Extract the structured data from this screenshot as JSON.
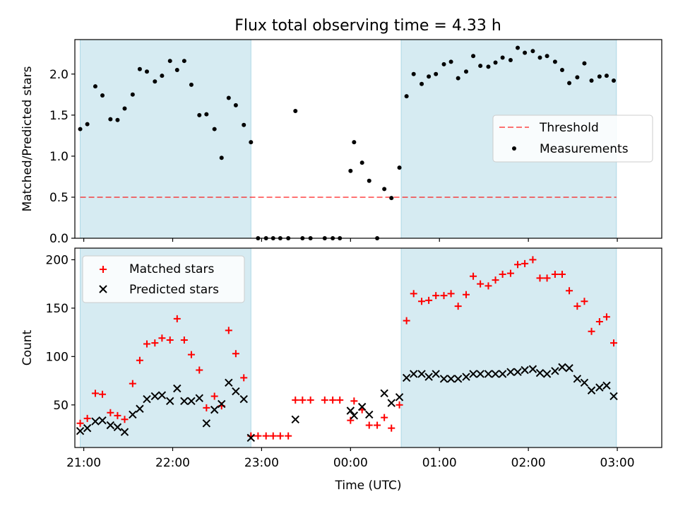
{
  "title": "Flux total observing time = 4.33 h",
  "colors": {
    "shade": "#add8e6",
    "threshold": "#ff0000",
    "measurement": "#000000",
    "matched": "#ff0000",
    "predicted": "#000000"
  },
  "chart_data": [
    {
      "type": "scatter",
      "name": "ratio",
      "ylabel": "Matched/Predicted stars",
      "xlim": [
        -0.1,
        6.5
      ],
      "ylim": [
        0,
        2.42
      ],
      "x_ticks": [
        0,
        1,
        2,
        3,
        4,
        5,
        6
      ],
      "y_ticks": [
        0,
        0.5,
        1.0,
        1.5,
        2.0
      ],
      "y_tick_labels": [
        "0.0",
        "0.5",
        "1.0",
        "1.5",
        "2.0"
      ],
      "shaded_intervals": [
        [
          -0.04,
          1.88
        ],
        [
          3.57,
          5.99
        ]
      ],
      "threshold": 0.5,
      "legend": {
        "position": "center-right",
        "entries": [
          "Threshold",
          "Measurements"
        ]
      },
      "series": [
        {
          "name": "Measurements",
          "points": [
            [
              -0.04,
              1.33
            ],
            [
              0.04,
              1.39
            ],
            [
              0.13,
              1.85
            ],
            [
              0.21,
              1.74
            ],
            [
              0.3,
              1.45
            ],
            [
              0.38,
              1.44
            ],
            [
              0.46,
              1.58
            ],
            [
              0.55,
              1.75
            ],
            [
              0.63,
              2.06
            ],
            [
              0.71,
              2.03
            ],
            [
              0.8,
              1.91
            ],
            [
              0.88,
              1.98
            ],
            [
              0.97,
              2.16
            ],
            [
              1.05,
              2.05
            ],
            [
              1.13,
              2.16
            ],
            [
              1.21,
              1.87
            ],
            [
              1.3,
              1.5
            ],
            [
              1.38,
              1.51
            ],
            [
              1.47,
              1.33
            ],
            [
              1.55,
              0.98
            ],
            [
              1.63,
              1.71
            ],
            [
              1.71,
              1.62
            ],
            [
              1.8,
              1.38
            ],
            [
              1.88,
              1.17
            ],
            [
              1.96,
              0.0
            ],
            [
              2.05,
              0.0
            ],
            [
              2.13,
              0.0
            ],
            [
              2.21,
              0.0
            ],
            [
              2.3,
              0.0
            ],
            [
              2.38,
              1.55
            ],
            [
              2.46,
              0.0
            ],
            [
              2.55,
              0.0
            ],
            [
              2.71,
              0.0
            ],
            [
              2.8,
              0.0
            ],
            [
              2.88,
              0.0
            ],
            [
              3.0,
              0.82
            ],
            [
              3.04,
              1.17
            ],
            [
              3.13,
              0.92
            ],
            [
              3.21,
              0.7
            ],
            [
              3.3,
              0.0
            ],
            [
              3.38,
              0.6
            ],
            [
              3.46,
              0.49
            ],
            [
              3.55,
              0.86
            ],
            [
              3.63,
              1.73
            ],
            [
              3.71,
              2.0
            ],
            [
              3.8,
              1.88
            ],
            [
              3.88,
              1.97
            ],
            [
              3.96,
              2.0
            ],
            [
              4.05,
              2.12
            ],
            [
              4.13,
              2.15
            ],
            [
              4.21,
              1.95
            ],
            [
              4.3,
              2.03
            ],
            [
              4.38,
              2.22
            ],
            [
              4.46,
              2.1
            ],
            [
              4.55,
              2.09
            ],
            [
              4.63,
              2.14
            ],
            [
              4.71,
              2.2
            ],
            [
              4.8,
              2.17
            ],
            [
              4.88,
              2.32
            ],
            [
              4.96,
              2.26
            ],
            [
              5.05,
              2.28
            ],
            [
              5.13,
              2.2
            ],
            [
              5.21,
              2.22
            ],
            [
              5.3,
              2.15
            ],
            [
              5.38,
              2.05
            ],
            [
              5.46,
              1.89
            ],
            [
              5.55,
              1.96
            ],
            [
              5.63,
              2.13
            ],
            [
              5.71,
              1.92
            ],
            [
              5.8,
              1.97
            ],
            [
              5.88,
              1.98
            ],
            [
              5.96,
              1.92
            ]
          ]
        }
      ]
    },
    {
      "type": "scatter",
      "name": "counts",
      "xlabel": "Time (UTC)",
      "ylabel": "Count",
      "xlim": [
        -0.1,
        6.5
      ],
      "ylim": [
        6,
        212
      ],
      "x_ticks": [
        0,
        1,
        2,
        3,
        4,
        5,
        6
      ],
      "x_tick_labels": [
        "21:00",
        "22:00",
        "23:00",
        "00:00",
        "01:00",
        "02:00",
        "03:00"
      ],
      "y_ticks": [
        50,
        100,
        150,
        200
      ],
      "y_tick_labels": [
        "50",
        "100",
        "150",
        "200"
      ],
      "shaded_intervals": [
        [
          -0.04,
          1.88
        ],
        [
          3.57,
          5.99
        ]
      ],
      "legend": {
        "position": "top-left",
        "entries": [
          "Matched stars",
          "Predicted stars"
        ]
      },
      "series": [
        {
          "name": "Matched stars",
          "points": [
            [
              -0.04,
              31
            ],
            [
              0.04,
              36
            ],
            [
              0.13,
              62
            ],
            [
              0.21,
              61
            ],
            [
              0.3,
              42
            ],
            [
              0.38,
              39
            ],
            [
              0.46,
              35
            ],
            [
              0.55,
              72
            ],
            [
              0.63,
              96
            ],
            [
              0.71,
              113
            ],
            [
              0.8,
              114
            ],
            [
              0.88,
              119
            ],
            [
              0.97,
              117
            ],
            [
              1.05,
              139
            ],
            [
              1.13,
              117
            ],
            [
              1.21,
              102
            ],
            [
              1.3,
              86
            ],
            [
              1.38,
              47
            ],
            [
              1.47,
              59
            ],
            [
              1.55,
              49
            ],
            [
              1.63,
              127
            ],
            [
              1.71,
              103
            ],
            [
              1.8,
              78
            ],
            [
              1.88,
              18
            ],
            [
              1.96,
              18
            ],
            [
              2.05,
              18
            ],
            [
              2.13,
              18
            ],
            [
              2.21,
              18
            ],
            [
              2.3,
              18
            ],
            [
              2.38,
              55
            ],
            [
              2.46,
              55
            ],
            [
              2.55,
              55
            ],
            [
              2.71,
              55
            ],
            [
              2.8,
              55
            ],
            [
              2.88,
              55
            ],
            [
              3.0,
              34
            ],
            [
              3.04,
              54
            ],
            [
              3.13,
              45
            ],
            [
              3.21,
              29
            ],
            [
              3.3,
              29
            ],
            [
              3.38,
              37
            ],
            [
              3.46,
              26
            ],
            [
              3.55,
              50
            ],
            [
              3.63,
              137
            ],
            [
              3.71,
              165
            ],
            [
              3.8,
              157
            ],
            [
              3.88,
              158
            ],
            [
              3.96,
              163
            ],
            [
              4.05,
              163
            ],
            [
              4.13,
              165
            ],
            [
              4.21,
              152
            ],
            [
              4.3,
              164
            ],
            [
              4.38,
              183
            ],
            [
              4.46,
              175
            ],
            [
              4.55,
              173
            ],
            [
              4.63,
              179
            ],
            [
              4.71,
              185
            ],
            [
              4.8,
              186
            ],
            [
              4.88,
              195
            ],
            [
              4.96,
              196
            ],
            [
              5.05,
              200
            ],
            [
              5.13,
              181
            ],
            [
              5.21,
              181
            ],
            [
              5.3,
              185
            ],
            [
              5.38,
              185
            ],
            [
              5.46,
              168
            ],
            [
              5.55,
              152
            ],
            [
              5.63,
              157
            ],
            [
              5.71,
              126
            ],
            [
              5.8,
              136
            ],
            [
              5.88,
              141
            ],
            [
              5.96,
              114
            ]
          ]
        },
        {
          "name": "Predicted stars",
          "points": [
            [
              -0.04,
              23
            ],
            [
              0.04,
              26
            ],
            [
              0.13,
              33
            ],
            [
              0.21,
              34
            ],
            [
              0.3,
              29
            ],
            [
              0.38,
              27
            ],
            [
              0.46,
              22
            ],
            [
              0.55,
              40
            ],
            [
              0.63,
              46
            ],
            [
              0.71,
              56
            ],
            [
              0.8,
              59
            ],
            [
              0.88,
              60
            ],
            [
              0.97,
              54
            ],
            [
              1.05,
              67
            ],
            [
              1.13,
              54
            ],
            [
              1.21,
              54
            ],
            [
              1.3,
              57
            ],
            [
              1.38,
              31
            ],
            [
              1.47,
              45
            ],
            [
              1.55,
              51
            ],
            [
              1.63,
              73
            ],
            [
              1.71,
              64
            ],
            [
              1.8,
              56
            ],
            [
              1.88,
              16
            ],
            [
              2.38,
              35
            ],
            [
              3.0,
              44
            ],
            [
              3.04,
              39
            ],
            [
              3.13,
              48
            ],
            [
              3.21,
              40
            ],
            [
              3.38,
              62
            ],
            [
              3.46,
              52
            ],
            [
              3.55,
              58
            ],
            [
              3.63,
              78
            ],
            [
              3.71,
              82
            ],
            [
              3.8,
              82
            ],
            [
              3.88,
              79
            ],
            [
              3.96,
              82
            ],
            [
              4.05,
              77
            ],
            [
              4.13,
              77
            ],
            [
              4.21,
              77
            ],
            [
              4.3,
              79
            ],
            [
              4.38,
              82
            ],
            [
              4.46,
              82
            ],
            [
              4.55,
              82
            ],
            [
              4.63,
              82
            ],
            [
              4.71,
              82
            ],
            [
              4.8,
              84
            ],
            [
              4.88,
              84
            ],
            [
              4.96,
              86
            ],
            [
              5.05,
              87
            ],
            [
              5.13,
              83
            ],
            [
              5.21,
              82
            ],
            [
              5.3,
              85
            ],
            [
              5.38,
              89
            ],
            [
              5.46,
              88
            ],
            [
              5.55,
              77
            ],
            [
              5.63,
              73
            ],
            [
              5.71,
              65
            ],
            [
              5.8,
              68
            ],
            [
              5.88,
              70
            ],
            [
              5.96,
              59
            ]
          ]
        }
      ]
    }
  ]
}
